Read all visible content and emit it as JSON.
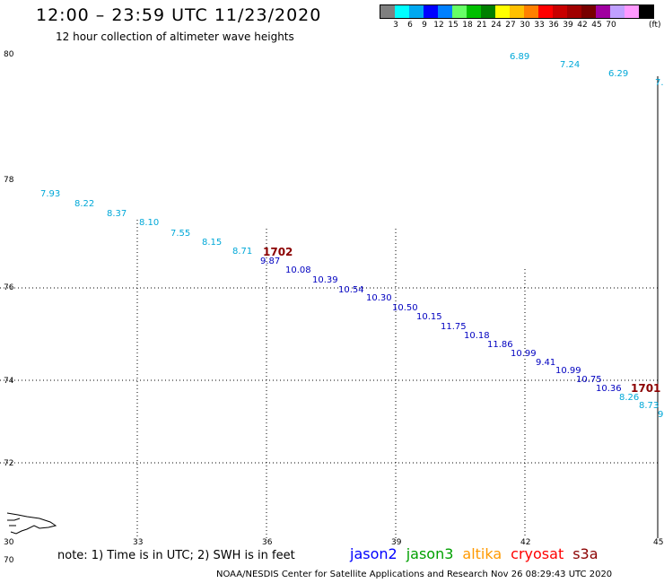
{
  "header": {
    "title": "12:00 – 23:59 UTC 11/23/2020",
    "subtitle": "12 hour collection of altimeter wave heights"
  },
  "legend": {
    "colors": [
      "#808080",
      "#00ffff",
      "#00a8f0",
      "#0000ff",
      "#0080ff",
      "#66ff66",
      "#00c000",
      "#008000",
      "#ffff00",
      "#ffc000",
      "#ff8000",
      "#ff0000",
      "#c80000",
      "#a00000",
      "#780000",
      "#a000a0",
      "#c0a0ff",
      "#ff99ff",
      "#000000"
    ],
    "labels": [
      "3",
      "6",
      "9",
      "12",
      "15",
      "18",
      "21",
      "24",
      "27",
      "30",
      "33",
      "36",
      "39",
      "42",
      "45",
      "70"
    ],
    "unit": "(ft)"
  },
  "map": {
    "lat_labels": [
      "80",
      "78",
      "76",
      "74",
      "72",
      "70"
    ],
    "lon_labels": [
      "30",
      "33",
      "36",
      "39",
      "42",
      "45"
    ]
  },
  "observations": [
    {
      "text": "7.93",
      "color": "#00a8d8"
    },
    {
      "text": "8.22",
      "color": "#00a8d8"
    },
    {
      "text": "8.37",
      "color": "#00a8d8"
    },
    {
      "text": "8.10",
      "color": "#00a8d8"
    },
    {
      "text": "7.55",
      "color": "#00a8d8"
    },
    {
      "text": "8.15",
      "color": "#00a8d8"
    },
    {
      "text": "8.71",
      "color": "#00a8d8"
    },
    {
      "text": "9.87",
      "color": "#0000c0"
    },
    {
      "text": "10.08",
      "color": "#0000c0"
    },
    {
      "text": "10.39",
      "color": "#0000c0"
    },
    {
      "text": "10.54",
      "color": "#0000c0"
    },
    {
      "text": "10.30",
      "color": "#0000c0"
    },
    {
      "text": "10.50",
      "color": "#0000c0"
    },
    {
      "text": "10.15",
      "color": "#0000c0"
    },
    {
      "text": "11.75",
      "color": "#0000c0"
    },
    {
      "text": "10.18",
      "color": "#0000c0"
    },
    {
      "text": "11.86",
      "color": "#0000c0"
    },
    {
      "text": "10.99",
      "color": "#0000c0"
    },
    {
      "text": "9.41",
      "color": "#0000c0"
    },
    {
      "text": "10.99",
      "color": "#0000c0"
    },
    {
      "text": "10.75",
      "color": "#0000c0"
    },
    {
      "text": "10.36",
      "color": "#0000c0"
    },
    {
      "text": "8.26",
      "color": "#00a8d8"
    },
    {
      "text": "8.73",
      "color": "#00a8d8"
    },
    {
      "text": "9",
      "color": "#00a8d8"
    },
    {
      "text": "6.89",
      "color": "#00a8d8"
    },
    {
      "text": "7.24",
      "color": "#00a8d8"
    },
    {
      "text": "6.29",
      "color": "#00a8d8"
    },
    {
      "text": "7.",
      "color": "#00a8d8"
    }
  ],
  "tracks": [
    {
      "text": "1702",
      "color": "#8b0000"
    },
    {
      "text": "1701",
      "color": "#8b0000"
    }
  ],
  "note": "note:  1) Time is in UTC;  2) SWH is in feet",
  "satellites": [
    {
      "name": "jason2",
      "color": "#0000ff"
    },
    {
      "name": "jason3",
      "color": "#00a000"
    },
    {
      "name": "altika",
      "color": "#ff9900"
    },
    {
      "name": "cryosat",
      "color": "#ff0000"
    },
    {
      "name": "s3a",
      "color": "#8b0000"
    }
  ],
  "footer": "NOAA/NESDIS Center for Satellite Applications and Research     Nov 26 08:29:43 UTC 2020"
}
